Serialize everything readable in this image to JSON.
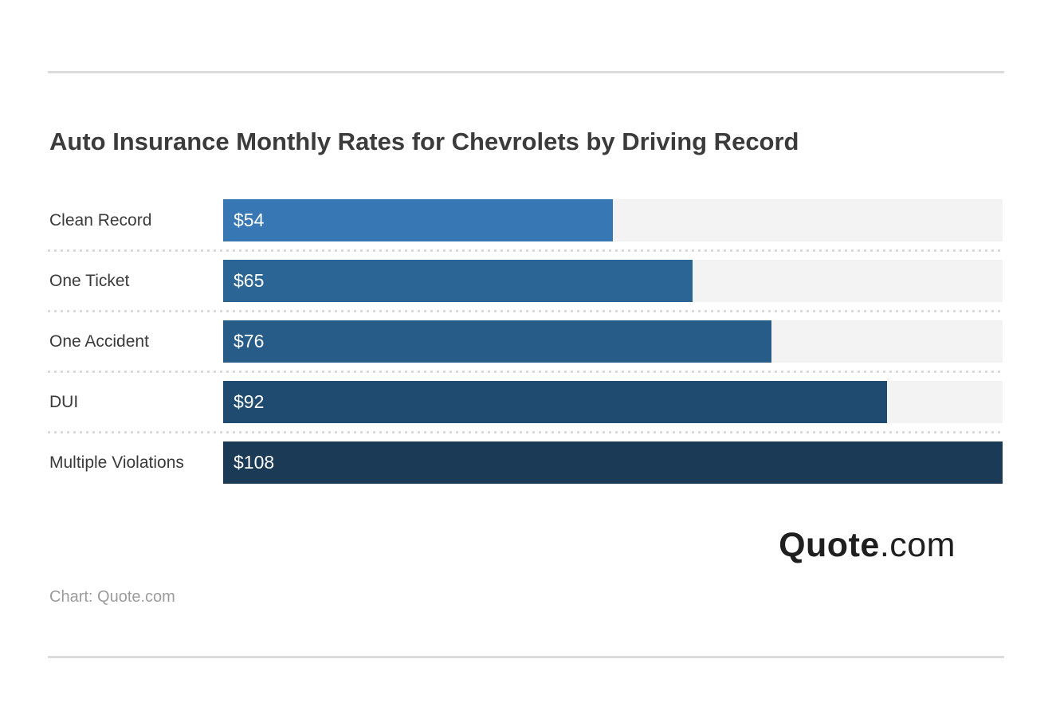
{
  "title": "Auto Insurance Monthly Rates for Chevrolets by Driving Record",
  "chart_data": {
    "type": "bar",
    "orientation": "horizontal",
    "categories": [
      "Clean Record",
      "One Ticket",
      "One Accident",
      "DUI",
      "Multiple Violations"
    ],
    "values": [
      54,
      65,
      76,
      92,
      108
    ],
    "value_labels": [
      "$54",
      "$65",
      "$76",
      "$92",
      "$108"
    ],
    "value_prefix": "$",
    "xlim": [
      0,
      108
    ],
    "bar_colors": [
      "#3778b4",
      "#2b6596",
      "#275c88",
      "#1f4b70",
      "#1a3a56"
    ],
    "track_color": "#f3f3f3",
    "title": "Auto Insurance Monthly Rates for Chevrolets by Driving Record",
    "xlabel": "",
    "ylabel": "",
    "grid": false,
    "legend": false,
    "value_labels_position": "inside-start"
  },
  "branding": {
    "logo_primary": "Quote",
    "logo_suffix": ".com"
  },
  "attribution": "Chart: Quote.com"
}
